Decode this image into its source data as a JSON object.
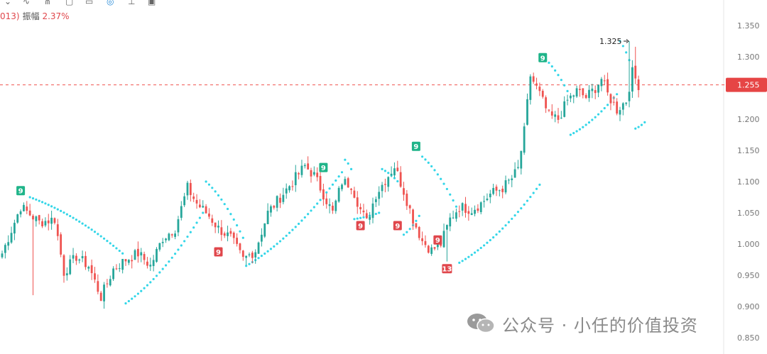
{
  "header": {
    "code_suffix": "013)",
    "amplitude_label": "振幅",
    "amplitude_value": "2.37%"
  },
  "toolbar": {
    "icons": [
      "chevron-icon",
      "wave-icon",
      "nodes-icon",
      "square-icon",
      "doc-icon",
      "magnet-icon",
      "pin-icon",
      "calendar-icon"
    ]
  },
  "watermark": {
    "text": "公众号 · 小任的价值投资"
  },
  "colors": {
    "up": "#26a69a",
    "down": "#ef5350",
    "sar": "#33d6e8",
    "price_line": "#ef5350",
    "nine_up": "#1fb489",
    "nine_down": "#e0474c"
  },
  "chart_data": {
    "type": "candlestick",
    "title": "",
    "ylim": [
      0.84,
      1.36
    ],
    "y_ticks": [
      "0.850",
      "0.900",
      "0.950",
      "1.000",
      "1.050",
      "1.100",
      "1.150",
      "1.200",
      "1.250",
      "1.300",
      "1.350"
    ],
    "current_price": "1.255",
    "high_annotation": "1.325",
    "keypoints": [
      {
        "i": 0,
        "p": 0.985
      },
      {
        "i": 6,
        "p": 1.06
      },
      {
        "i": 12,
        "p": 1.035
      },
      {
        "i": 17,
        "p": 1.04
      },
      {
        "i": 20,
        "p": 0.955
      },
      {
        "i": 24,
        "p": 0.98
      },
      {
        "i": 28,
        "p": 0.965
      },
      {
        "i": 32,
        "p": 0.915
      },
      {
        "i": 36,
        "p": 0.96
      },
      {
        "i": 40,
        "p": 0.975
      },
      {
        "i": 44,
        "p": 0.985
      },
      {
        "i": 48,
        "p": 0.965
      },
      {
        "i": 52,
        "p": 1.01
      },
      {
        "i": 56,
        "p": 1.025
      },
      {
        "i": 60,
        "p": 1.09
      },
      {
        "i": 63,
        "p": 1.065
      },
      {
        "i": 67,
        "p": 1.045
      },
      {
        "i": 70,
        "p": 1.025
      },
      {
        "i": 74,
        "p": 1.01
      },
      {
        "i": 78,
        "p": 0.975
      },
      {
        "i": 82,
        "p": 0.99
      },
      {
        "i": 86,
        "p": 1.05
      },
      {
        "i": 90,
        "p": 1.075
      },
      {
        "i": 94,
        "p": 1.1
      },
      {
        "i": 98,
        "p": 1.125
      },
      {
        "i": 101,
        "p": 1.11
      },
      {
        "i": 104,
        "p": 1.08
      },
      {
        "i": 107,
        "p": 1.05
      },
      {
        "i": 110,
        "p": 1.1
      },
      {
        "i": 113,
        "p": 1.095
      },
      {
        "i": 116,
        "p": 1.055
      },
      {
        "i": 118,
        "p": 1.035
      },
      {
        "i": 121,
        "p": 1.08
      },
      {
        "i": 125,
        "p": 1.11
      },
      {
        "i": 127,
        "p": 1.125
      },
      {
        "i": 130,
        "p": 1.085
      },
      {
        "i": 133,
        "p": 1.04
      },
      {
        "i": 136,
        "p": 1.005
      },
      {
        "i": 139,
        "p": 0.99
      },
      {
        "i": 142,
        "p": 1.0
      },
      {
        "i": 145,
        "p": 1.04
      },
      {
        "i": 148,
        "p": 1.06
      },
      {
        "i": 152,
        "p": 1.055
      },
      {
        "i": 155,
        "p": 1.065
      },
      {
        "i": 158,
        "p": 1.08
      },
      {
        "i": 162,
        "p": 1.09
      },
      {
        "i": 165,
        "p": 1.105
      },
      {
        "i": 167,
        "p": 1.12
      },
      {
        "i": 169,
        "p": 1.18
      },
      {
        "i": 171,
        "p": 1.27
      },
      {
        "i": 174,
        "p": 1.24
      },
      {
        "i": 177,
        "p": 1.205
      },
      {
        "i": 180,
        "p": 1.2
      },
      {
        "i": 183,
        "p": 1.23
      },
      {
        "i": 186,
        "p": 1.245
      },
      {
        "i": 189,
        "p": 1.235
      },
      {
        "i": 192,
        "p": 1.25
      },
      {
        "i": 194,
        "p": 1.265
      },
      {
        "i": 196,
        "p": 1.24
      },
      {
        "i": 199,
        "p": 1.215
      },
      {
        "i": 202,
        "p": 1.23
      },
      {
        "i": 204,
        "p": 1.275
      },
      {
        "i": 206,
        "p": 1.255
      }
    ],
    "bars": 207,
    "sar_segments": [
      {
        "side": "above",
        "from": 9,
        "to": 39,
        "start": 1.075,
        "end": 0.985
      },
      {
        "side": "below",
        "from": 40,
        "to": 65,
        "start": 0.905,
        "end": 1.05
      },
      {
        "side": "above",
        "from": 66,
        "to": 78,
        "start": 1.1,
        "end": 1.01
      },
      {
        "side": "below",
        "from": 79,
        "to": 110,
        "start": 0.965,
        "end": 1.115
      },
      {
        "side": "above",
        "from": 111,
        "to": 113,
        "start": 1.135,
        "end": 1.12
      },
      {
        "side": "below",
        "from": 114,
        "to": 122,
        "start": 1.04,
        "end": 1.05
      },
      {
        "side": "above",
        "from": 123,
        "to": 129,
        "start": 1.12,
        "end": 1.095
      },
      {
        "side": "below",
        "from": 130,
        "to": 135,
        "start": 1.015,
        "end": 1.045
      },
      {
        "side": "above",
        "from": 136,
        "to": 147,
        "start": 1.14,
        "end": 1.06
      },
      {
        "side": "below",
        "from": 148,
        "to": 174,
        "start": 0.97,
        "end": 1.095
      },
      {
        "side": "above",
        "from": 175,
        "to": 183,
        "start": 1.3,
        "end": 1.245
      },
      {
        "side": "below",
        "from": 184,
        "to": 199,
        "start": 1.175,
        "end": 1.24
      },
      {
        "side": "above",
        "from": 200,
        "to": 204,
        "start": 1.325,
        "end": 1.28
      },
      {
        "side": "below",
        "from": 205,
        "to": 208,
        "start": 1.185,
        "end": 1.195
      }
    ],
    "markers": [
      {
        "i": 6,
        "text": "9",
        "kind": "up",
        "price": 1.085
      },
      {
        "i": 70,
        "text": "9",
        "kind": "down",
        "price": 0.987
      },
      {
        "i": 104,
        "text": "9",
        "kind": "up",
        "price": 1.122
      },
      {
        "i": 116,
        "text": "9",
        "kind": "down",
        "price": 1.029
      },
      {
        "i": 128,
        "text": "9",
        "kind": "down",
        "price": 1.029
      },
      {
        "i": 134,
        "text": "9",
        "kind": "up",
        "price": 1.156
      },
      {
        "i": 141,
        "text": "9",
        "kind": "down",
        "price": 1.006
      },
      {
        "i": 144,
        "text": "13",
        "kind": "down",
        "price": 0.96
      },
      {
        "i": 175,
        "text": "9",
        "kind": "up",
        "price": 1.298
      }
    ]
  }
}
